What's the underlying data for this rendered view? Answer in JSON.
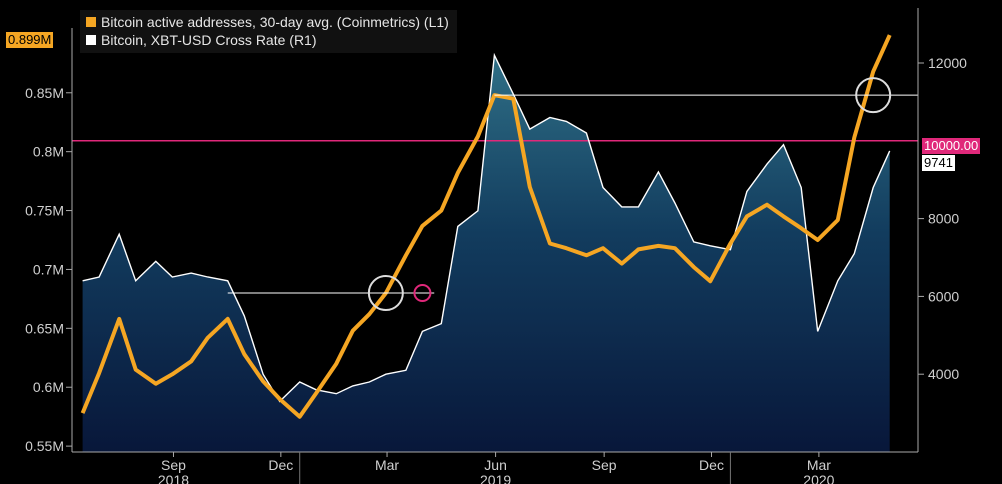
{
  "chart_data": {
    "type": "area",
    "title": "",
    "xlabel": "",
    "ylabel_left": "",
    "ylabel_right": "",
    "x_months": [
      "Sep",
      "Dec",
      "Mar",
      "Jun",
      "Sep",
      "Dec",
      "Mar"
    ],
    "x_years": [
      "2018",
      "2019",
      "2020"
    ],
    "y_left_ticks": [
      "0.55M",
      "0.6M",
      "0.65M",
      "0.7M",
      "0.75M",
      "0.8M",
      "0.85M"
    ],
    "y_right_ticks": [
      "4000",
      "6000",
      "8000",
      "12000"
    ],
    "ylim_left": [
      0.545,
      0.905
    ],
    "ylim_right": [
      2000,
      12900
    ],
    "series": [
      {
        "name": "Bitcoin active addresses, 30-day avg. (Coinmetrics) (L1)",
        "axis": "left",
        "color": "#f5a623",
        "last_value": "0.899M",
        "x": [
          "2018-07-01",
          "2018-07-15",
          "2018-08-01",
          "2018-08-15",
          "2018-09-01",
          "2018-09-15",
          "2018-10-01",
          "2018-10-15",
          "2018-11-01",
          "2018-11-15",
          "2018-12-01",
          "2018-12-15",
          "2019-01-01",
          "2019-01-15",
          "2019-02-01",
          "2019-02-15",
          "2019-03-01",
          "2019-03-15",
          "2019-04-01",
          "2019-04-15",
          "2019-05-01",
          "2019-05-15",
          "2019-06-01",
          "2019-06-15",
          "2019-07-01",
          "2019-07-15",
          "2019-08-01",
          "2019-08-15",
          "2019-09-01",
          "2019-09-15",
          "2019-10-01",
          "2019-10-15",
          "2019-11-01",
          "2019-11-15",
          "2019-12-01",
          "2019-12-15",
          "2020-01-01",
          "2020-01-15",
          "2020-02-01",
          "2020-02-15",
          "2020-03-01",
          "2020-03-15",
          "2020-04-01",
          "2020-04-15",
          "2020-05-01",
          "2020-05-15"
        ],
        "y": [
          0.578,
          0.612,
          0.658,
          0.615,
          0.603,
          0.611,
          0.622,
          0.642,
          0.658,
          0.628,
          0.605,
          0.59,
          0.575,
          0.595,
          0.62,
          0.648,
          0.662,
          0.68,
          0.712,
          0.737,
          0.75,
          0.782,
          0.813,
          0.848,
          0.845,
          0.77,
          0.722,
          0.718,
          0.712,
          0.718,
          0.705,
          0.717,
          0.72,
          0.718,
          0.702,
          0.69,
          0.722,
          0.745,
          0.755,
          0.745,
          0.735,
          0.725,
          0.742,
          0.812,
          0.868,
          0.899
        ]
      },
      {
        "name": "Bitcoin, XBT-USD Cross Rate (R1)",
        "axis": "right",
        "color": "#ffffff",
        "fill": "gradient",
        "last_value": "9741",
        "x": [
          "2018-07-01",
          "2018-07-15",
          "2018-08-01",
          "2018-08-15",
          "2018-09-01",
          "2018-09-15",
          "2018-10-01",
          "2018-10-15",
          "2018-11-01",
          "2018-11-15",
          "2018-12-01",
          "2018-12-15",
          "2019-01-01",
          "2019-01-15",
          "2019-02-01",
          "2019-02-15",
          "2019-03-01",
          "2019-03-15",
          "2019-04-01",
          "2019-04-15",
          "2019-05-01",
          "2019-05-15",
          "2019-06-01",
          "2019-06-15",
          "2019-07-01",
          "2019-07-15",
          "2019-08-01",
          "2019-08-15",
          "2019-09-01",
          "2019-09-15",
          "2019-10-01",
          "2019-10-15",
          "2019-11-01",
          "2019-11-15",
          "2019-12-01",
          "2019-12-15",
          "2020-01-01",
          "2020-01-15",
          "2020-02-01",
          "2020-02-15",
          "2020-03-01",
          "2020-03-15",
          "2020-04-01",
          "2020-04-15",
          "2020-05-01",
          "2020-05-15"
        ],
        "y": [
          6400,
          6500,
          7600,
          6400,
          6900,
          6500,
          6600,
          6500,
          6400,
          5500,
          4000,
          3300,
          3800,
          3600,
          3500,
          3700,
          3800,
          4000,
          4100,
          5100,
          5300,
          7800,
          8200,
          12200,
          11200,
          10300,
          10600,
          10500,
          10200,
          8800,
          8300,
          8300,
          9200,
          8400,
          7400,
          7300,
          7200,
          8700,
          9400,
          9900,
          8800,
          5100,
          6400,
          7100,
          8800,
          9741
        ]
      }
    ],
    "reference_lines": [
      {
        "value_right": "10000.00",
        "color": "#e0287a"
      }
    ],
    "grid": false,
    "legend_position": "top-left"
  }
}
